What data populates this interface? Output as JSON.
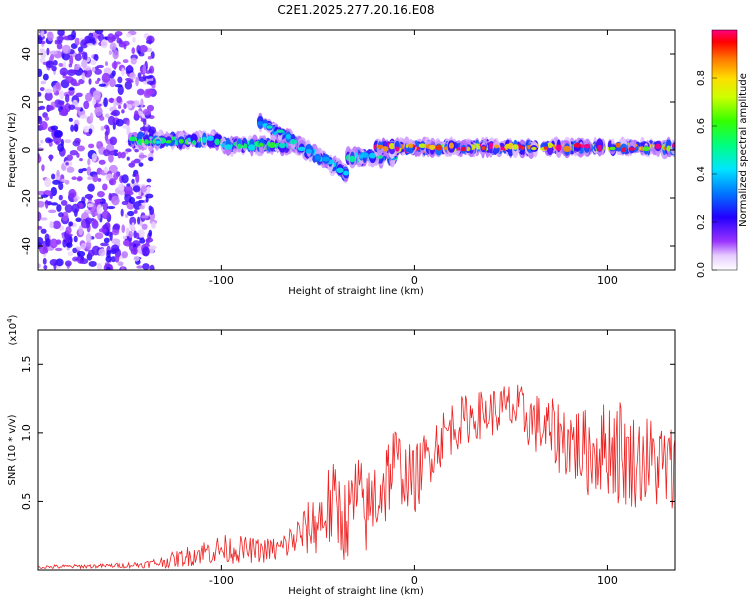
{
  "title": "C2E1.2025.277.20.16.E08",
  "chart_data": [
    {
      "type": "heatmap",
      "xlabel": "Height of straight line (km)",
      "ylabel": "Frequency (Hz)",
      "xlim": [
        -195,
        135
      ],
      "ylim": [
        -50,
        50
      ],
      "xticks": [
        -100,
        0,
        100
      ],
      "xtick_labels": [
        "-100",
        "0",
        "100"
      ],
      "yticks": [
        -40,
        -20,
        0,
        20,
        40
      ],
      "ytick_labels": [
        "-40",
        "-20",
        "0",
        "20",
        "40"
      ],
      "colorbar": {
        "label": "Normalized spectral amplitude",
        "range": [
          0,
          1
        ],
        "ticks": [
          0.0,
          0.2,
          0.4,
          0.6,
          0.8
        ],
        "tick_labels": [
          "0.0",
          "0.2",
          "0.4",
          "0.6",
          "0.8"
        ],
        "colormap": [
          "#ffffff",
          "#cc99ff",
          "#8800ff",
          "#2200ff",
          "#0088ff",
          "#00ffff",
          "#00ff66",
          "#66ff00",
          "#ffff00",
          "#ff9900",
          "#ff0000",
          "#ff0088"
        ]
      },
      "ridge_segments": [
        {
          "x_start": -148,
          "x_end": -100,
          "freq": 4,
          "amplitude": 0.55
        },
        {
          "x_start": -100,
          "x_end": -60,
          "freq": 2,
          "amplitude": 0.5
        },
        {
          "x_start": -80,
          "x_end": -35,
          "freq_start": 12,
          "freq_end": -10,
          "amplitude": 0.4
        },
        {
          "x_start": -35,
          "x_end": -10,
          "freq": -3,
          "amplitude": 0.45
        },
        {
          "x_start": -20,
          "x_end": 135,
          "freq": 1,
          "amplitude": 0.85
        }
      ],
      "noise_region": {
        "x_start": -195,
        "x_end": -135,
        "freq_range": [
          -50,
          50
        ],
        "amplitude": 0.15
      }
    },
    {
      "type": "line",
      "xlabel": "Height of straight line (km)",
      "ylabel": "SNR (10 * v/v)",
      "scale_label": "(x10",
      "scale_exponent": "4",
      "scale_suffix": ")",
      "xlim": [
        -195,
        135
      ],
      "ylim": [
        0,
        17500
      ],
      "xticks": [
        -100,
        0,
        100
      ],
      "xtick_labels": [
        "-100",
        "0",
        "100"
      ],
      "yticks": [
        5000,
        10000,
        15000
      ],
      "ytick_labels": [
        "0.5",
        "1.0",
        "1.5"
      ],
      "color": "#ff0000",
      "series": [
        {
          "name": "SNR",
          "x": [
            -195,
            -180,
            -160,
            -140,
            -130,
            -120,
            -110,
            -100,
            -90,
            -80,
            -70,
            -60,
            -50,
            -45,
            -40,
            -35,
            -30,
            -25,
            -20,
            -15,
            -10,
            -5,
            0,
            10,
            20,
            30,
            40,
            50,
            60,
            70,
            80,
            90,
            100,
            105,
            110,
            120,
            130,
            135
          ],
          "mean": [
            200,
            250,
            300,
            400,
            600,
            900,
            1300,
            1500,
            1500,
            1400,
            1500,
            2500,
            3500,
            4500,
            4500,
            3500,
            5500,
            4000,
            5500,
            6500,
            8000,
            7000,
            6500,
            9000,
            10500,
            11200,
            11500,
            11800,
            11000,
            10000,
            9500,
            8500,
            9000,
            9000,
            8000,
            8000,
            7500,
            7000
          ],
          "spread": [
            150,
            150,
            150,
            250,
            450,
            700,
            900,
            1100,
            1000,
            900,
            1000,
            1500,
            2500,
            3200,
            3500,
            3000,
            3500,
            3000,
            3500,
            3500,
            2800,
            2500,
            2500,
            2200,
            2000,
            1800,
            1800,
            2000,
            2200,
            2500,
            3000,
            3200,
            3500,
            4500,
            3500,
            3500,
            3500,
            3500
          ]
        }
      ]
    }
  ]
}
